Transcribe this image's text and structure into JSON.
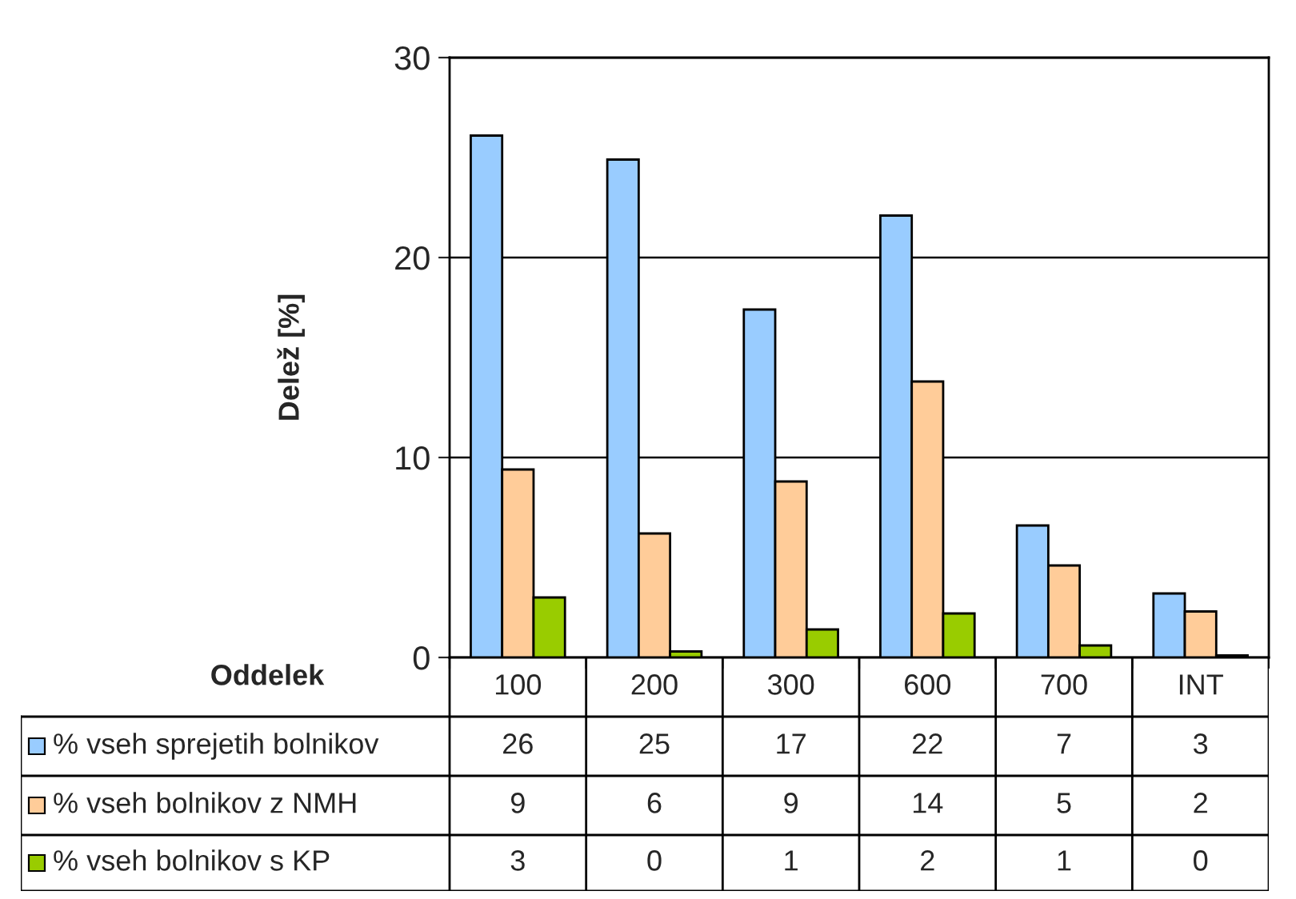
{
  "chart_data": {
    "type": "bar",
    "xlabel": "Oddelek",
    "ylabel": "Delež [%]",
    "categories": [
      "100",
      "200",
      "300",
      "600",
      "700",
      "INT"
    ],
    "series": [
      {
        "name": "% vseh sprejetih bolnikov",
        "color": "#99ccff",
        "values": [
          26.1,
          24.9,
          17.4,
          22.1,
          6.6,
          3.2
        ],
        "value_labels": [
          "26",
          "25",
          "17",
          "22",
          "7",
          "3"
        ]
      },
      {
        "name": "% vseh bolnikov z NMH",
        "color": "#ffcc99",
        "values": [
          9.4,
          6.2,
          8.8,
          13.8,
          4.6,
          2.3
        ],
        "value_labels": [
          "9",
          "6",
          "9",
          "14",
          "5",
          "2"
        ]
      },
      {
        "name": "% vseh bolnikov s KP",
        "color": "#99cc00",
        "values": [
          3.0,
          0.3,
          1.4,
          2.2,
          0.6,
          0.1
        ],
        "value_labels": [
          "3",
          "0",
          "1",
          "2",
          "1",
          "0"
        ]
      }
    ],
    "ylim": [
      0,
      30
    ],
    "yticks": [
      0,
      10,
      20,
      30
    ],
    "grid": "y",
    "legend": "bottom"
  }
}
